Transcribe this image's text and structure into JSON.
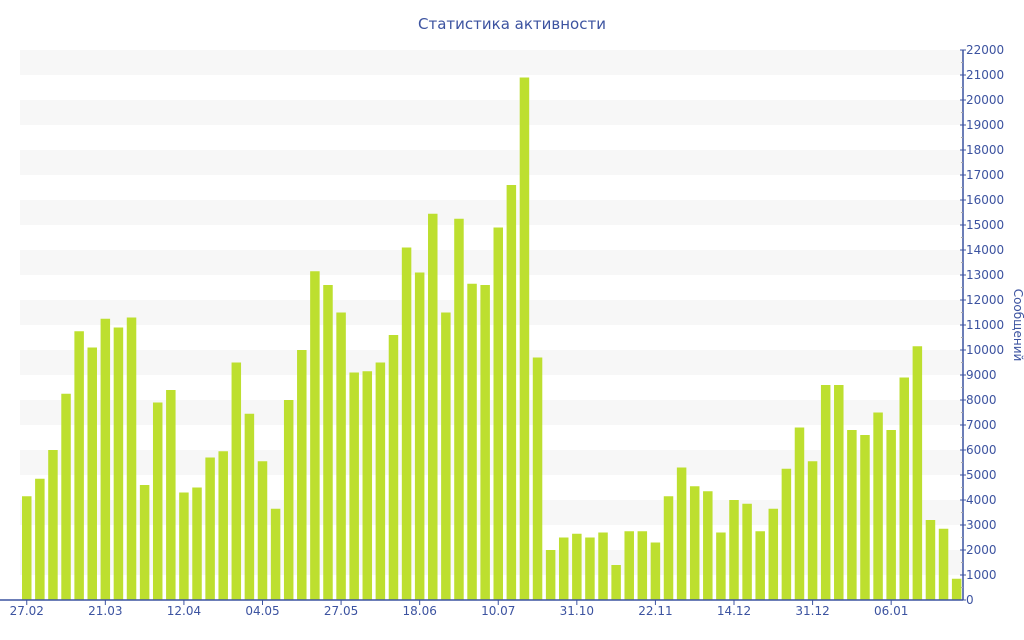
{
  "chart_data": {
    "type": "bar",
    "title": "Статистика активности",
    "xlabel": "",
    "ylabel": "Сообщений",
    "ylim": [
      0,
      22000
    ],
    "y_ticks": [
      0,
      1000,
      2000,
      3000,
      4000,
      5000,
      6000,
      7000,
      8000,
      9000,
      10000,
      11000,
      12000,
      13000,
      14000,
      15000,
      16000,
      17000,
      18000,
      19000,
      20000,
      21000,
      22000
    ],
    "y_axis_position": "right",
    "grid": true,
    "x_ticks": [
      {
        "index": 0,
        "label": "27.02"
      },
      {
        "index": 6,
        "label": "21.03"
      },
      {
        "index": 12,
        "label": "12.04"
      },
      {
        "index": 18,
        "label": "04.05"
      },
      {
        "index": 24,
        "label": "27.05"
      },
      {
        "index": 30,
        "label": "18.06"
      },
      {
        "index": 36,
        "label": "10.07"
      },
      {
        "index": 42,
        "label": "31.10"
      },
      {
        "index": 48,
        "label": "22.11"
      },
      {
        "index": 54,
        "label": "14.12"
      },
      {
        "index": 60,
        "label": "31.12"
      },
      {
        "index": 66,
        "label": "06.01"
      }
    ],
    "values": [
      4150,
      4850,
      6000,
      8250,
      10750,
      10100,
      11250,
      10900,
      11300,
      4600,
      7900,
      8400,
      4300,
      4500,
      5700,
      5950,
      9500,
      7450,
      5550,
      3650,
      8000,
      10000,
      13150,
      12600,
      11500,
      9100,
      9150,
      9500,
      10600,
      14100,
      13100,
      15450,
      11500,
      15250,
      12650,
      12600,
      14900,
      16600,
      20900,
      9700,
      2000,
      2500,
      2650,
      2500,
      2700,
      1400,
      2750,
      2750,
      2300,
      4150,
      5300,
      4550,
      4350,
      2700,
      4000,
      3850,
      2750,
      3650,
      5250,
      6900,
      5550,
      8600,
      8600,
      6800,
      6600,
      7500,
      6800,
      8900,
      10150,
      3200,
      2850,
      850
    ],
    "colors": {
      "bar": "#bddf2f",
      "axis": "#3c53a0",
      "band": "#f7f7f7"
    }
  }
}
